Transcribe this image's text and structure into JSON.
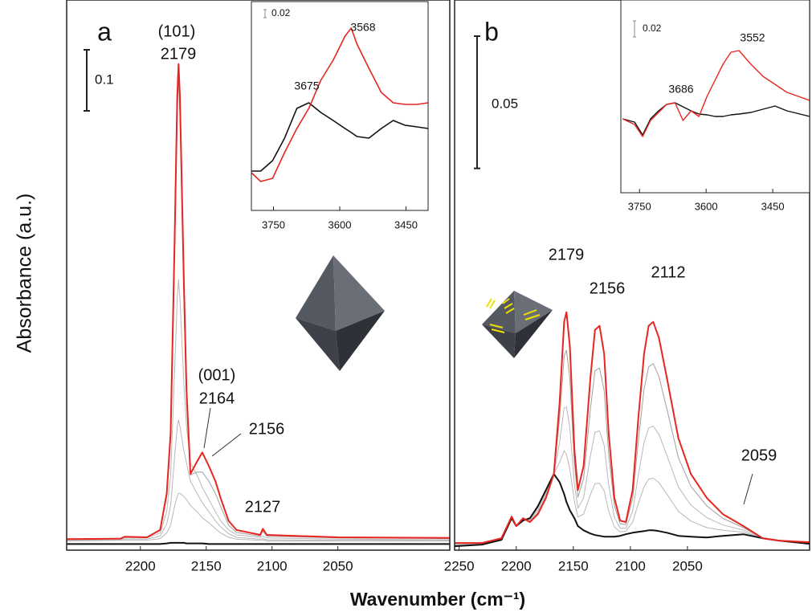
{
  "ylabel": "Absorbance (a.u.)",
  "xlabel": "Wavenumber (cm⁻¹)",
  "chart_data": [
    {
      "type": "line",
      "panel_label": "a",
      "scale_bar": 0.1,
      "annotations": [
        "(101)",
        "2179",
        "(001)",
        "2164",
        "2156",
        "2127"
      ],
      "xlim": [
        2256,
        1965
      ],
      "ylim": [
        -0.013,
        0.888
      ],
      "xticks": [
        2200,
        2150,
        2100,
        2050
      ],
      "x": [
        2256,
        2215,
        2212,
        2195,
        2185,
        2180,
        2177,
        2174,
        2172,
        2171,
        2170,
        2167,
        2165,
        2162,
        2157,
        2153,
        2148,
        2143,
        2139,
        2133,
        2127,
        2109,
        2107,
        2104,
        2050,
        1965
      ],
      "series": [
        {
          "color": "#b8b8b8",
          "values": [
            0.002,
            0.003,
            0.003,
            0.003,
            0.006,
            0.015,
            0.028,
            0.06,
            0.075,
            0.08,
            0.08,
            0.075,
            0.07,
            0.06,
            0.05,
            0.04,
            0.032,
            0.022,
            0.015,
            0.008,
            0.005,
            0.003,
            0.004,
            0.002,
            0.002,
            0.002
          ]
        },
        {
          "color": "#b8b8b8",
          "values": [
            0.003,
            0.004,
            0.005,
            0.005,
            0.01,
            0.03,
            0.06,
            0.14,
            0.19,
            0.2,
            0.19,
            0.15,
            0.13,
            0.1,
            0.08,
            0.065,
            0.05,
            0.035,
            0.025,
            0.014,
            0.008,
            0.005,
            0.006,
            0.004,
            0.003,
            0.003
          ]
        },
        {
          "color": "#b8b8b8",
          "values": [
            0.004,
            0.005,
            0.007,
            0.007,
            0.015,
            0.05,
            0.11,
            0.28,
            0.4,
            0.43,
            0.4,
            0.26,
            0.19,
            0.13,
            0.11,
            0.09,
            0.07,
            0.05,
            0.035,
            0.02,
            0.012,
            0.008,
            0.01,
            0.007,
            0.005,
            0.004
          ]
        },
        {
          "color": "#a0a0a0",
          "values": [
            0.005,
            0.006,
            0.009,
            0.008,
            0.02,
            0.075,
            0.17,
            0.47,
            0.7,
            0.76,
            0.7,
            0.4,
            0.23,
            0.11,
            0.115,
            0.115,
            0.1,
            0.08,
            0.058,
            0.028,
            0.016,
            0.01,
            0.018,
            0.01,
            0.007,
            0.006
          ]
        },
        {
          "color": "#111111",
          "values": [
            -0.003,
            -0.003,
            -0.003,
            -0.003,
            -0.003,
            -0.002,
            -0.001,
            -0.001,
            -0.001,
            -0.001,
            -0.001,
            -0.001,
            -0.002,
            -0.002,
            -0.002,
            -0.002,
            -0.003,
            -0.003,
            -0.003,
            -0.003,
            -0.003,
            -0.003,
            -0.003,
            -0.003,
            -0.003,
            -0.003
          ]
        },
        {
          "color": "#e8261f",
          "values": [
            0.005,
            0.006,
            0.009,
            0.008,
            0.02,
            0.08,
            0.18,
            0.493,
            0.73,
            0.783,
            0.73,
            0.428,
            0.25,
            0.112,
            0.132,
            0.147,
            0.125,
            0.1,
            0.072,
            0.035,
            0.02,
            0.012,
            0.022,
            0.012,
            0.008,
            0.007
          ]
        }
      ]
    },
    {
      "type": "line",
      "scale_bar": 0.02,
      "annotations": [
        "3675",
        "3568"
      ],
      "xlim": [
        3800,
        3400
      ],
      "ylim": [
        0,
        0.52
      ],
      "xticks": [
        3750,
        3600,
        3450
      ],
      "x": [
        3800,
        3779,
        3752,
        3725,
        3697,
        3670,
        3643,
        3615,
        3588,
        3574,
        3561,
        3534,
        3506,
        3479,
        3452,
        3425,
        3400
      ],
      "series": [
        {
          "color": "#111111",
          "values": [
            0.098,
            0.098,
            0.124,
            0.18,
            0.254,
            0.268,
            0.244,
            0.224,
            0.204,
            0.194,
            0.184,
            0.18,
            0.204,
            0.224,
            0.212,
            0.208,
            0.204
          ]
        },
        {
          "color": "#e8261f",
          "values": [
            0.094,
            0.072,
            0.08,
            0.144,
            0.204,
            0.254,
            0.324,
            0.374,
            0.434,
            0.454,
            0.414,
            0.354,
            0.294,
            0.268,
            0.264,
            0.264,
            0.268
          ]
        }
      ]
    },
    {
      "type": "line",
      "panel_label": "b",
      "scale_bar": 0.05,
      "annotations": [
        "2179",
        "2156",
        "2112",
        "2059"
      ],
      "xlim": [
        2254,
        1943
      ],
      "ylim": [
        -0.003,
        0.205
      ],
      "xticks": [
        2250,
        2200,
        2150,
        2100,
        2050
      ],
      "x": [
        2254,
        2230,
        2213,
        2204,
        2200,
        2194,
        2188,
        2181,
        2174,
        2167,
        2162,
        2158,
        2156,
        2153,
        2149,
        2146,
        2141,
        2135,
        2131,
        2127,
        2123,
        2119,
        2114,
        2109,
        2104,
        2098,
        2093,
        2088,
        2084,
        2080,
        2075,
        2068,
        2058,
        2047,
        2033,
        2019,
        2001,
        1984,
        1970,
        1943
      ],
      "series": [
        {
          "color": "#b8b8b8",
          "values": [
            -0.0012,
            -0.0008,
            0.0011,
            0.0093,
            0.0061,
            0.0084,
            0.0087,
            0.0129,
            0.019,
            0.0258,
            0.0303,
            0.0345,
            0.0332,
            0.0276,
            0.0155,
            0.0095,
            0.0106,
            0.018,
            0.0221,
            0.0223,
            0.0194,
            0.0118,
            0.0058,
            0.0039,
            0.0042,
            0.0076,
            0.0147,
            0.021,
            0.0238,
            0.0242,
            0.0225,
            0.0182,
            0.0117,
            0.008,
            0.0055,
            0.0045,
            0.0038,
            0.0015,
            0.0006,
            -0.0005
          ]
        },
        {
          "color": "#b8b8b8",
          "values": [
            -0.0009,
            -0.0006,
            0.0012,
            0.0094,
            0.0061,
            0.0087,
            0.0084,
            0.0121,
            0.0182,
            0.0258,
            0.0379,
            0.0508,
            0.0511,
            0.0432,
            0.022,
            0.0129,
            0.0167,
            0.0327,
            0.0415,
            0.0421,
            0.0367,
            0.0215,
            0.0094,
            0.0053,
            0.0053,
            0.0117,
            0.0255,
            0.0377,
            0.0432,
            0.0439,
            0.0408,
            0.0329,
            0.0209,
            0.014,
            0.0093,
            0.0065,
            0.0046,
            0.0015,
            0.0006,
            -0.0003
          ]
        },
        {
          "color": "#a0a0a0",
          "values": [
            -0.0005,
            -0.0004,
            0.0014,
            0.0096,
            0.0061,
            0.0089,
            0.0079,
            0.0112,
            0.0173,
            0.0258,
            0.0469,
            0.0703,
            0.0726,
            0.0618,
            0.0297,
            0.017,
            0.0239,
            0.0503,
            0.0648,
            0.0659,
            0.0574,
            0.0331,
            0.0138,
            0.007,
            0.0067,
            0.0165,
            0.0384,
            0.0578,
            0.0663,
            0.0675,
            0.0627,
            0.0504,
            0.032,
            0.0211,
            0.0137,
            0.009,
            0.0055,
            0.0015,
            0.0006,
            -0.0001
          ]
        },
        {
          "color": "#111111",
          "values": [
            -0.0015,
            -0.0009,
            0.0009,
            0.0091,
            0.0061,
            0.0082,
            0.0091,
            0.0136,
            0.0197,
            0.0258,
            0.0227,
            0.0182,
            0.0152,
            0.0121,
            0.0091,
            0.0061,
            0.0045,
            0.0033,
            0.0027,
            0.0024,
            0.0021,
            0.0021,
            0.0021,
            0.0024,
            0.003,
            0.0036,
            0.0039,
            0.0042,
            0.0045,
            0.0045,
            0.0042,
            0.0036,
            0.0024,
            0.0021,
            0.0018,
            0.0024,
            0.003,
            0.0015,
            0.0006,
            -0.0006
          ]
        },
        {
          "color": "#e8261f",
          "values": [
            -0.0003,
            -0.0003,
            0.0015,
            0.0097,
            0.0061,
            0.0091,
            0.0076,
            0.0106,
            0.0167,
            0.0258,
            0.053,
            0.0833,
            0.087,
            0.0742,
            0.0348,
            0.0197,
            0.0288,
            0.0621,
            0.0803,
            0.0818,
            0.0712,
            0.0409,
            0.0167,
            0.0082,
            0.0076,
            0.0197,
            0.047,
            0.0712,
            0.0818,
            0.0833,
            0.0773,
            0.0621,
            0.0394,
            0.0258,
            0.0167,
            0.0106,
            0.0061,
            0.0015,
            0.0006,
            0.0
          ]
        }
      ]
    },
    {
      "type": "line",
      "scale_bar": 0.02,
      "annotations": [
        "3686",
        "3552"
      ],
      "xlim": [
        3792,
        3367
      ],
      "ylim": [
        0,
        0.24
      ],
      "xticks": [
        3750,
        3600,
        3450
      ],
      "x": [
        3788,
        3761,
        3743,
        3725,
        3707,
        3689,
        3670,
        3652,
        3634,
        3616,
        3598,
        3580,
        3562,
        3544,
        3526,
        3499,
        3472,
        3445,
        3418,
        3367
      ],
      "series": [
        {
          "color": "#111111",
          "values": [
            0.092,
            0.088,
            0.072,
            0.092,
            0.102,
            0.11,
            0.112,
            0.107,
            0.102,
            0.098,
            0.097,
            0.095,
            0.095,
            0.097,
            0.098,
            0.1,
            0.104,
            0.108,
            0.102,
            0.095
          ]
        },
        {
          "color": "#e8261f",
          "values": [
            0.092,
            0.085,
            0.07,
            0.09,
            0.1,
            0.11,
            0.112,
            0.09,
            0.102,
            0.095,
            0.12,
            0.14,
            0.16,
            0.175,
            0.177,
            0.16,
            0.145,
            0.135,
            0.125,
            0.115
          ]
        }
      ]
    }
  ]
}
